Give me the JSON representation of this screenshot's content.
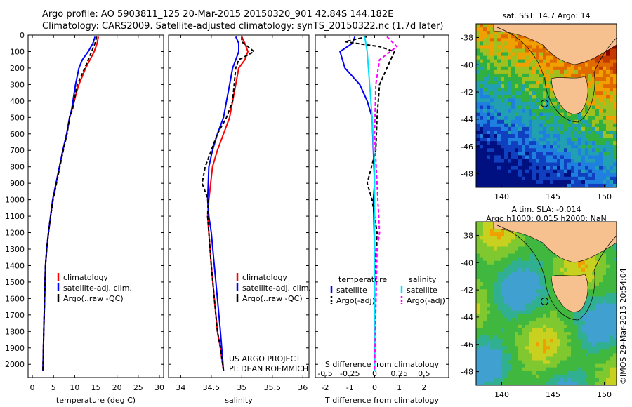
{
  "header": {
    "title_line1": "Argo profile: AO 5903811_125 20-Mar-2015 20150320_901 42.84S 144.182E",
    "title_line2": "Climatology: CARS2009. Satellite-adjusted climatology: synTS_20150322.nc (1.7d later)"
  },
  "colors": {
    "climatology": "#ff0000",
    "satellite": "#0000ff",
    "argo": "#000000",
    "sal_satellite": "#00e0ff",
    "sal_argo": "#ff00ff",
    "land": "#f7c08f"
  },
  "chart_data": [
    {
      "type": "line",
      "xlabel": "temperature (deg C)",
      "ylabel": "",
      "xlim": [
        -1,
        31
      ],
      "ylim": [
        2080,
        0
      ],
      "xticks": [
        "0",
        "5",
        "10",
        "15",
        "20",
        "25",
        "30"
      ],
      "yticks": [
        "0",
        "100",
        "200",
        "300",
        "400",
        "500",
        "600",
        "700",
        "800",
        "900",
        "1000",
        "1100",
        "1200",
        "1300",
        "1400",
        "1500",
        "1600",
        "1700",
        "1800",
        "1900",
        "2000"
      ],
      "legend": [
        "climatology",
        "satellite-adj. clim.",
        "Argo(..raw -QC)"
      ],
      "legend_position": "center",
      "series": [
        {
          "name": "climatology",
          "style": "solid",
          "color": "#ff0000",
          "x": [
            15.6,
            15.3,
            14.6,
            13.6,
            12.6,
            11.8,
            11.0,
            10.4,
            9.9,
            9.4,
            8.8,
            8.1,
            7.2,
            6.4,
            5.6,
            4.8,
            4.3,
            3.8,
            3.4,
            3.1,
            2.9,
            2.7,
            2.5
          ],
          "y": [
            10,
            50,
            100,
            150,
            200,
            250,
            300,
            350,
            400,
            450,
            500,
            600,
            700,
            800,
            900,
            1000,
            1100,
            1200,
            1300,
            1400,
            1600,
            1800,
            2040
          ]
        },
        {
          "name": "satellite-adj. clim.",
          "style": "solid",
          "color": "#0000ff",
          "x": [
            14.8,
            14.3,
            13.2,
            11.8,
            11.0,
            10.6,
            10.2,
            9.9,
            9.6,
            9.3,
            8.8,
            8.1,
            7.2,
            6.4,
            5.6,
            4.8,
            4.3,
            3.8,
            3.4,
            3.1,
            2.9,
            2.7,
            2.5
          ],
          "y": [
            10,
            50,
            100,
            150,
            200,
            250,
            300,
            350,
            400,
            450,
            500,
            600,
            700,
            800,
            900,
            1000,
            1100,
            1200,
            1300,
            1400,
            1600,
            1800,
            2040
          ]
        },
        {
          "name": "Argo(..raw -QC)",
          "style": "dashed",
          "color": "#000000",
          "x": [
            15.2,
            14.8,
            14.0,
            13.2,
            12.4,
            11.5,
            10.6,
            10.2,
            9.9,
            9.5,
            8.8,
            8.2,
            7.3,
            6.5,
            5.7,
            4.9,
            4.3,
            3.8,
            3.4,
            3.1,
            2.9,
            2.7,
            2.5
          ],
          "y": [
            10,
            50,
            100,
            150,
            200,
            250,
            300,
            350,
            400,
            450,
            500,
            600,
            700,
            800,
            900,
            1000,
            1100,
            1200,
            1300,
            1400,
            1600,
            1800,
            2040
          ]
        }
      ]
    },
    {
      "type": "line",
      "xlabel": "salinity",
      "xlim": [
        33.8,
        36.1
      ],
      "ylim": [
        2080,
        0
      ],
      "xticks": [
        "34",
        "34.5",
        "35",
        "35.5",
        "36"
      ],
      "legend": [
        "climatology",
        "satellite-adj. clim.",
        "Argo(..raw -QC)"
      ],
      "legend_position": "center-right",
      "annotation": [
        "US ARGO PROJECT",
        "PI: DEAN ROEMMICH"
      ],
      "series": [
        {
          "name": "climatology",
          "style": "solid",
          "color": "#ff0000",
          "x": [
            35.0,
            35.05,
            35.1,
            35.05,
            34.95,
            34.9,
            34.85,
            34.8,
            34.7,
            34.6,
            34.52,
            34.46,
            34.44,
            34.46,
            34.5,
            34.55,
            34.6,
            34.65,
            34.7
          ],
          "y": [
            10,
            50,
            100,
            150,
            200,
            300,
            400,
            500,
            600,
            700,
            800,
            1000,
            1100,
            1200,
            1400,
            1600,
            1800,
            1900,
            2040
          ]
        },
        {
          "name": "satellite-adj. clim.",
          "style": "solid",
          "color": "#0000ff",
          "x": [
            34.9,
            34.95,
            34.95,
            34.9,
            34.85,
            34.8,
            34.75,
            34.7,
            34.6,
            34.52,
            34.46,
            34.44,
            34.46,
            34.5,
            34.55,
            34.6,
            34.65,
            34.7
          ],
          "y": [
            10,
            50,
            100,
            150,
            200,
            300,
            400,
            500,
            600,
            700,
            800,
            1000,
            1100,
            1200,
            1400,
            1600,
            1800,
            2040
          ]
        },
        {
          "name": "Argo(..raw -QC)",
          "style": "dashed",
          "color": "#000000",
          "x": [
            35.0,
            35.0,
            35.1,
            35.2,
            34.95,
            34.9,
            34.85,
            34.75,
            34.6,
            34.4,
            34.35,
            34.45,
            34.44,
            34.46,
            34.5,
            34.55,
            34.6,
            34.65,
            34.7
          ],
          "y": [
            10,
            40,
            70,
            100,
            150,
            200,
            400,
            500,
            600,
            800,
            900,
            1000,
            1100,
            1200,
            1400,
            1600,
            1800,
            1900,
            2040
          ]
        }
      ]
    },
    {
      "type": "line",
      "xlabel": "T difference from climatology",
      "xlabel_top": "S difference from climatology",
      "xlim": [
        -2.4,
        3.0
      ],
      "ylim": [
        2080,
        0
      ],
      "xticks": [
        "-2",
        "-1",
        "0",
        "1",
        "2"
      ],
      "xticks_top": [
        "-0.5",
        "-0.25",
        "0",
        "0.25",
        "0.5"
      ],
      "legend": [
        "temperature",
        "satellite",
        "Argo(-adj)",
        "salinity",
        "satellite",
        "Argo(-adj)"
      ],
      "legend_position": "center",
      "series": [
        {
          "name": "satellite",
          "style": "solid",
          "color": "#0000ff",
          "x": [
            -0.8,
            -0.9,
            -1.4,
            -1.2,
            -0.6,
            -0.3,
            -0.1,
            -0.05,
            0,
            -0.05,
            0,
            0,
            0
          ],
          "y": [
            10,
            50,
            100,
            200,
            300,
            400,
            500,
            700,
            900,
            1000,
            1300,
            1600,
            2040
          ]
        },
        {
          "name": "Argo(-adj)",
          "style": "dashed",
          "color": "#000000",
          "x": [
            -0.3,
            -1.2,
            0.2,
            0.8,
            0.5,
            0.2,
            0.1,
            0.05,
            -0.3,
            -0.1,
            0.1,
            0,
            0
          ],
          "y": [
            10,
            40,
            70,
            100,
            200,
            300,
            500,
            700,
            900,
            1000,
            1200,
            1500,
            2040
          ]
        },
        {
          "name": "satellite",
          "style": "solid",
          "color": "#00e0ff",
          "x": [
            -0.4,
            -0.3,
            -0.2,
            -0.1,
            0,
            0,
            0
          ],
          "y": [
            10,
            100,
            300,
            500,
            800,
            1200,
            2040
          ]
        },
        {
          "name": "Argo(-adj)",
          "style": "dashed",
          "color": "#ff00ff",
          "x": [
            0.5,
            0.9,
            0.2,
            0.05,
            0,
            0.2,
            0.1,
            0
          ],
          "y": [
            10,
            70,
            150,
            300,
            600,
            1200,
            1300,
            2040
          ]
        }
      ]
    }
  ],
  "maps": {
    "sst": {
      "title": "sat. SST: 14.7 Argo: 14",
      "xticks": [
        "140",
        "145",
        "150"
      ],
      "yticks": [
        "-38",
        "-40",
        "-42",
        "-44",
        "-46",
        "-48"
      ]
    },
    "sla": {
      "title_line1": "Altim. SLA: -0.014",
      "title_line2": "Argo h1000: 0.015 h2000: NaN",
      "xticks": [
        "140",
        "145",
        "150"
      ],
      "yticks": [
        "-38",
        "-40",
        "-42",
        "-44",
        "-46",
        "-48"
      ]
    },
    "credit": "©IMOS 29-Mar-2015 20:54:04"
  }
}
